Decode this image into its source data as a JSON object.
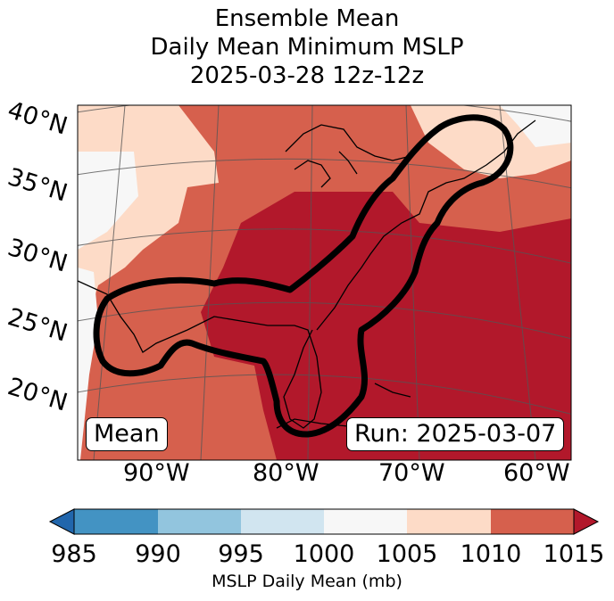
{
  "title": {
    "line1": "Ensemble Mean",
    "line2": "Daily Mean Minimum MSLP",
    "line3": "2025-03-28 12z-12z"
  },
  "map": {
    "lat_labels": [
      "40°N",
      "35°N",
      "30°N",
      "25°N",
      "20°N"
    ],
    "lon_labels": [
      "90°W",
      "80°W",
      "70°W",
      "60°W"
    ],
    "left_box": "Mean",
    "right_box": "Run: 2025-03-07",
    "shading_levels": [
      "1005-1010",
      "1010-1015",
      ">1015",
      "1000-1005"
    ]
  },
  "colorbar": {
    "ticks": [
      "985",
      "990",
      "995",
      "1000",
      "1005",
      "1010",
      "1015"
    ],
    "label": "MSLP Daily Mean (mb)",
    "colors": [
      "#2166ac",
      "#4393c3",
      "#92c5de",
      "#d1e5f0",
      "#f7f7f7",
      "#fddbc7",
      "#d6604d",
      "#b2182b"
    ]
  }
}
